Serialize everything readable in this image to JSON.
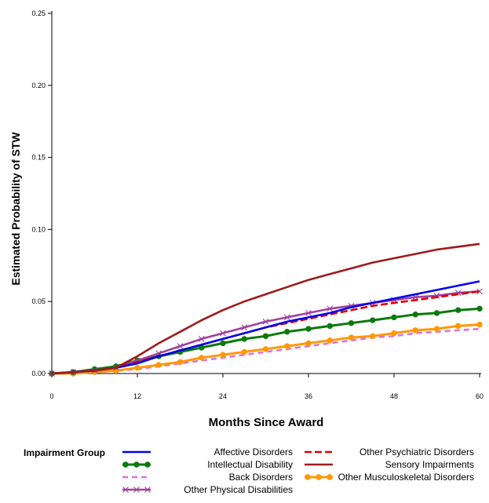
{
  "chart_data": {
    "type": "line",
    "title": "",
    "xlabel": "Months Since Award",
    "ylabel": "Estimated Probability of STW",
    "xlim": [
      0,
      60
    ],
    "ylim": [
      0,
      0.25
    ],
    "x_ticks": [
      0,
      12,
      24,
      36,
      48,
      60
    ],
    "x_tick_labels": [
      "0",
      "12",
      "24",
      "36",
      "48",
      "60"
    ],
    "y_ticks": [
      0,
      0.05,
      0.1,
      0.15,
      0.2,
      0.25
    ],
    "y_tick_labels": [
      "0.00",
      "0.05",
      "0.10",
      "0.15",
      "0.20",
      "0.25"
    ],
    "grid": false,
    "legend_title": "Impairment Group",
    "legend_position": "bottom",
    "x": [
      0,
      3,
      6,
      9,
      12,
      15,
      18,
      21,
      24,
      27,
      30,
      33,
      36,
      39,
      42,
      45,
      48,
      51,
      54,
      57,
      60
    ],
    "series": [
      {
        "name": "Affective Disorders",
        "color": "#0000ee",
        "style": "solid",
        "marker": "none",
        "values": [
          0,
          0.001,
          0.002,
          0.004,
          0.007,
          0.012,
          0.016,
          0.02,
          0.024,
          0.028,
          0.032,
          0.036,
          0.039,
          0.042,
          0.046,
          0.049,
          0.052,
          0.055,
          0.058,
          0.061,
          0.064
        ]
      },
      {
        "name": "Other Psychiatric Disorders",
        "color": "#dd0000",
        "style": "dashed",
        "marker": "none",
        "values": [
          0,
          0.001,
          0.002,
          0.004,
          0.008,
          0.012,
          0.016,
          0.02,
          0.024,
          0.028,
          0.032,
          0.035,
          0.038,
          0.041,
          0.044,
          0.047,
          0.049,
          0.051,
          0.053,
          0.055,
          0.057
        ]
      },
      {
        "name": "Intellectual Disability",
        "color": "#0a7a0a",
        "style": "solid",
        "marker": "circle",
        "values": [
          0,
          0.001,
          0.003,
          0.005,
          0.009,
          0.012,
          0.015,
          0.018,
          0.021,
          0.024,
          0.026,
          0.029,
          0.031,
          0.033,
          0.035,
          0.037,
          0.039,
          0.041,
          0.042,
          0.044,
          0.045
        ]
      },
      {
        "name": "Sensory Impairments",
        "color": "#9e1b1b",
        "style": "solid",
        "marker": "none",
        "values": [
          0,
          0.001,
          0.002,
          0.004,
          0.012,
          0.021,
          0.029,
          0.037,
          0.044,
          0.05,
          0.055,
          0.06,
          0.065,
          0.069,
          0.073,
          0.077,
          0.08,
          0.083,
          0.086,
          0.088,
          0.09
        ]
      },
      {
        "name": "Back Disorders",
        "color": "#e070e0",
        "style": "dashed",
        "marker": "none",
        "values": [
          0,
          0.0,
          0.001,
          0.002,
          0.003,
          0.005,
          0.007,
          0.009,
          0.011,
          0.013,
          0.015,
          0.017,
          0.019,
          0.021,
          0.023,
          0.025,
          0.026,
          0.028,
          0.029,
          0.03,
          0.031
        ]
      },
      {
        "name": "Other Musculoskeletal Disorders",
        "color": "#ff9900",
        "style": "solid",
        "marker": "circle",
        "values": [
          0,
          0.0,
          0.001,
          0.002,
          0.004,
          0.006,
          0.008,
          0.011,
          0.013,
          0.015,
          0.017,
          0.019,
          0.021,
          0.023,
          0.025,
          0.026,
          0.028,
          0.03,
          0.031,
          0.033,
          0.034
        ]
      },
      {
        "name": "Other Physical Disabilities",
        "color": "#a040a0",
        "style": "solid",
        "marker": "x",
        "values": [
          0,
          0.001,
          0.002,
          0.004,
          0.009,
          0.014,
          0.019,
          0.024,
          0.028,
          0.032,
          0.036,
          0.039,
          0.042,
          0.045,
          0.047,
          0.049,
          0.051,
          0.053,
          0.054,
          0.056,
          0.057
        ]
      }
    ]
  }
}
